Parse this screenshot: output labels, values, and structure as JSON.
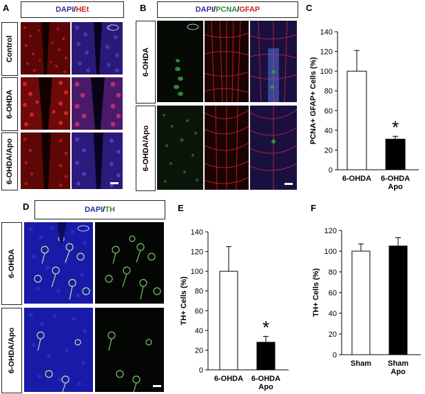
{
  "panels": {
    "A": {
      "letter": "A",
      "stain": [
        {
          "text": "DAPI",
          "color": "blue"
        },
        {
          "text": "/",
          "color": "sep"
        },
        {
          "text": "HEt",
          "color": "red"
        }
      ],
      "rows": [
        "Control",
        "6-OHDA",
        "6-OHDA/Apo"
      ]
    },
    "B": {
      "letter": "B",
      "stain": [
        {
          "text": "DAPI",
          "color": "blue"
        },
        {
          "text": "/",
          "color": "sep"
        },
        {
          "text": "PCNA",
          "color": "green"
        },
        {
          "text": "/",
          "color": "sep"
        },
        {
          "text": "GFAP",
          "color": "red"
        }
      ],
      "rows": [
        "6-OHDA",
        "6-OHDA/Apo"
      ]
    },
    "D": {
      "letter": "D",
      "stain": [
        {
          "text": "DAPI",
          "color": "blue"
        },
        {
          "text": "/",
          "color": "sep"
        },
        {
          "text": "TH",
          "color": "green"
        }
      ],
      "rows": [
        "6-OHDA",
        "6-OHDA/Apo"
      ]
    },
    "C": {
      "letter": "C"
    },
    "E": {
      "letter": "E"
    },
    "F": {
      "letter": "F"
    }
  },
  "chart_data": [
    {
      "id": "C",
      "type": "bar",
      "categories": [
        [
          "6-OHDA"
        ],
        [
          "6-OHDA",
          "Apo"
        ]
      ],
      "values": [
        100,
        31
      ],
      "errors": [
        21,
        3
      ],
      "fills": [
        "#ffffff",
        "#000000"
      ],
      "ylabel": "PCNA+ GFAP+ Cells (%)",
      "ylim": [
        0,
        140
      ],
      "yticks": [
        0,
        20,
        40,
        60,
        80,
        100,
        120,
        140
      ],
      "annotation": {
        "text": "*",
        "category_index": 1
      }
    },
    {
      "id": "E",
      "type": "bar",
      "categories": [
        [
          "6-OHDA"
        ],
        [
          "6-OHDA",
          "Apo"
        ]
      ],
      "values": [
        100,
        28
      ],
      "errors": [
        25,
        6
      ],
      "fills": [
        "#ffffff",
        "#000000"
      ],
      "ylabel": "TH+ Cells (%)",
      "ylim": [
        0,
        140
      ],
      "yticks": [
        0,
        20,
        40,
        60,
        80,
        100,
        120,
        140
      ],
      "annotation": {
        "text": "*",
        "category_index": 1
      }
    },
    {
      "id": "F",
      "type": "bar",
      "categories": [
        [
          "Sham"
        ],
        [
          "Sham",
          "Apo"
        ]
      ],
      "values": [
        100,
        105
      ],
      "errors": [
        7,
        8
      ],
      "fills": [
        "#ffffff",
        "#000000"
      ],
      "ylabel": "TH+ Cells (%)",
      "ylim": [
        0,
        120
      ],
      "yticks": [
        0,
        20,
        40,
        60,
        80,
        100,
        120
      ],
      "annotation": null
    }
  ],
  "colors": {
    "blue": "#2c2c9e",
    "red": "#d21f1f",
    "green": "#2f8a2f",
    "sep": "#000000"
  }
}
